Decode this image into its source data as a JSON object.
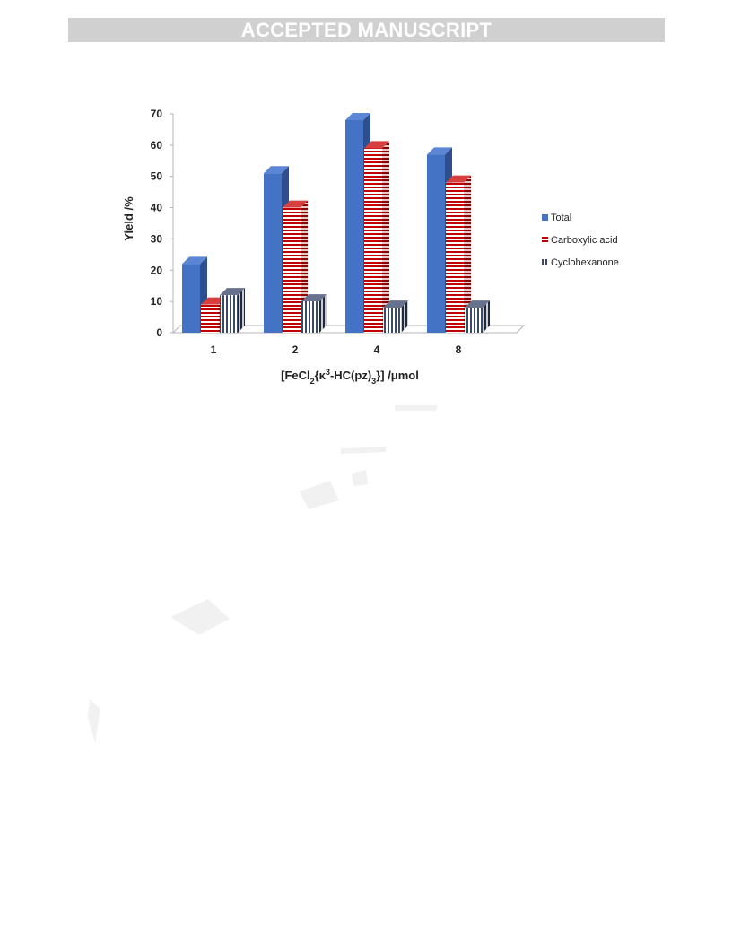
{
  "header": {
    "banner": "ACCEPTED MANUSCRIPT"
  },
  "colors": {
    "total": "#4472c4",
    "total_dark": "#2e4f8f",
    "carboxylic": "#c00000",
    "cyclohexanone": "#3b4a66",
    "banner_bg": "#d0d0d0"
  },
  "chart_data": {
    "type": "bar",
    "title": "",
    "xlabel": "[FeCl2{κ3-HC(pz)3}]  /μmol",
    "ylabel": "Yield /%",
    "categories": [
      "1",
      "2",
      "4",
      "8"
    ],
    "series": [
      {
        "name": "Total",
        "values": [
          22,
          51,
          68,
          57
        ]
      },
      {
        "name": "Carboxylic acid",
        "values": [
          9,
          40,
          59,
          48
        ]
      },
      {
        "name": "Cyclohexanone",
        "values": [
          12,
          10,
          8,
          8
        ]
      }
    ],
    "ylim": [
      0,
      70
    ],
    "yticks": [
      0,
      10,
      20,
      30,
      40,
      50,
      60,
      70
    ],
    "legend_position": "right",
    "grid": false,
    "style": "3d-clustered-column"
  }
}
